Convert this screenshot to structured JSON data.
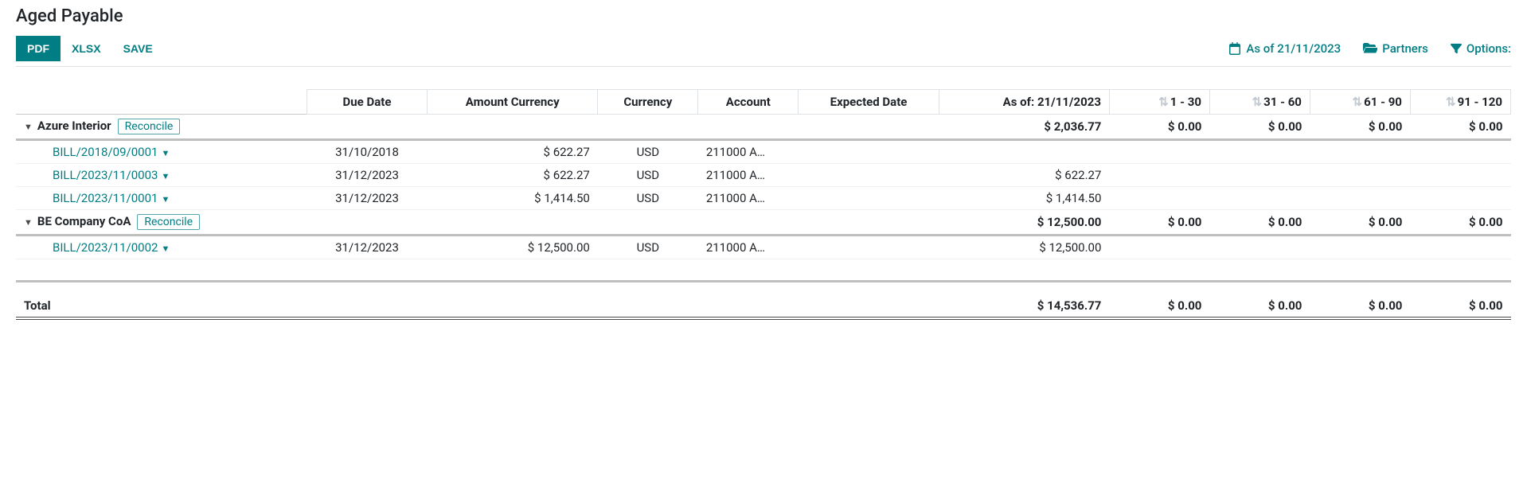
{
  "title": "Aged Payable",
  "colors": {
    "teal": "#017e84",
    "text": "#212529",
    "border": "#dee2e6",
    "sort_icon": "#c2c9d0"
  },
  "toolbar": {
    "pdf_label": "PDF",
    "xlsx_label": "XLSX",
    "save_label": "SAVE",
    "as_of_label": "As of 21/11/2023",
    "partners_label": "Partners",
    "options_label": "Options:"
  },
  "columns": {
    "due_date": "Due Date",
    "amount_currency": "Amount Currency",
    "currency": "Currency",
    "account": "Account",
    "expected_date": "Expected Date",
    "as_of": "As of: 21/11/2023",
    "b1": "1 - 30",
    "b2": "31 - 60",
    "b3": "61 - 90",
    "b4": "91 - 120"
  },
  "groups": [
    {
      "name": "Azure Interior",
      "reconcile_label": "Reconcile",
      "as_of": "$ 2,036.77",
      "b1": "$ 0.00",
      "b2": "$ 0.00",
      "b3": "$ 0.00",
      "b4": "$ 0.00",
      "lines": [
        {
          "ref": "BILL/2018/09/0001",
          "due": "31/10/2018",
          "amount": "$ 622.27",
          "currency": "USD",
          "account": "211000 A…",
          "as_of": ""
        },
        {
          "ref": "BILL/2023/11/0003",
          "due": "31/12/2023",
          "amount": "$ 622.27",
          "currency": "USD",
          "account": "211000 A…",
          "as_of": "$ 622.27"
        },
        {
          "ref": "BILL/2023/11/0001",
          "due": "31/12/2023",
          "amount": "$ 1,414.50",
          "currency": "USD",
          "account": "211000 A…",
          "as_of": "$ 1,414.50"
        }
      ]
    },
    {
      "name": "BE Company CoA",
      "reconcile_label": "Reconcile",
      "as_of": "$ 12,500.00",
      "b1": "$ 0.00",
      "b2": "$ 0.00",
      "b3": "$ 0.00",
      "b4": "$ 0.00",
      "lines": [
        {
          "ref": "BILL/2023/11/0002",
          "due": "31/12/2023",
          "amount": "$ 12,500.00",
          "currency": "USD",
          "account": "211000 A…",
          "as_of": "$ 12,500.00"
        }
      ]
    }
  ],
  "total": {
    "label": "Total",
    "as_of": "$ 14,536.77",
    "b1": "$ 0.00",
    "b2": "$ 0.00",
    "b3": "$ 0.00",
    "b4": "$ 0.00"
  }
}
